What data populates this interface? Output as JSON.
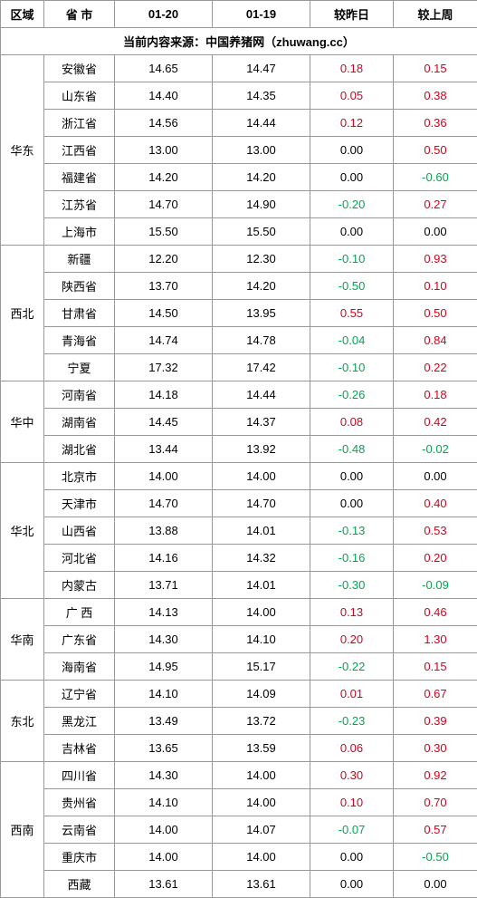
{
  "headers": {
    "region": "区域",
    "province": "省 市",
    "date1": "01-20",
    "date2": "01-19",
    "vs_day": "较昨日",
    "vs_week": "较上周"
  },
  "source_line": "当前内容来源：中国养猪网（zhuwang.cc）",
  "regions": [
    {
      "name": "华东",
      "rows": [
        {
          "prov": "安徽省",
          "d1": "14.65",
          "d2": "14.47",
          "vd": "0.18",
          "vw": "0.15"
        },
        {
          "prov": "山东省",
          "d1": "14.40",
          "d2": "14.35",
          "vd": "0.05",
          "vw": "0.38"
        },
        {
          "prov": "浙江省",
          "d1": "14.56",
          "d2": "14.44",
          "vd": "0.12",
          "vw": "0.36"
        },
        {
          "prov": "江西省",
          "d1": "13.00",
          "d2": "13.00",
          "vd": "0.00",
          "vw": "0.50"
        },
        {
          "prov": "福建省",
          "d1": "14.20",
          "d2": "14.20",
          "vd": "0.00",
          "vw": "-0.60"
        },
        {
          "prov": "江苏省",
          "d1": "14.70",
          "d2": "14.90",
          "vd": "-0.20",
          "vw": "0.27"
        },
        {
          "prov": "上海市",
          "d1": "15.50",
          "d2": "15.50",
          "vd": "0.00",
          "vw": "0.00"
        }
      ]
    },
    {
      "name": "西北",
      "rows": [
        {
          "prov": "新疆",
          "d1": "12.20",
          "d2": "12.30",
          "vd": "-0.10",
          "vw": "0.93"
        },
        {
          "prov": "陕西省",
          "d1": "13.70",
          "d2": "14.20",
          "vd": "-0.50",
          "vw": "0.10"
        },
        {
          "prov": "甘肃省",
          "d1": "14.50",
          "d2": "13.95",
          "vd": "0.55",
          "vw": "0.50"
        },
        {
          "prov": "青海省",
          "d1": "14.74",
          "d2": "14.78",
          "vd": "-0.04",
          "vw": "0.84"
        },
        {
          "prov": "宁夏",
          "d1": "17.32",
          "d2": "17.42",
          "vd": "-0.10",
          "vw": "0.22"
        }
      ]
    },
    {
      "name": "华中",
      "rows": [
        {
          "prov": "河南省",
          "d1": "14.18",
          "d2": "14.44",
          "vd": "-0.26",
          "vw": "0.18"
        },
        {
          "prov": "湖南省",
          "d1": "14.45",
          "d2": "14.37",
          "vd": "0.08",
          "vw": "0.42"
        },
        {
          "prov": "湖北省",
          "d1": "13.44",
          "d2": "13.92",
          "vd": "-0.48",
          "vw": "-0.02"
        }
      ]
    },
    {
      "name": "华北",
      "rows": [
        {
          "prov": "北京市",
          "d1": "14.00",
          "d2": "14.00",
          "vd": "0.00",
          "vw": "0.00"
        },
        {
          "prov": "天津市",
          "d1": "14.70",
          "d2": "14.70",
          "vd": "0.00",
          "vw": "0.40"
        },
        {
          "prov": "山西省",
          "d1": "13.88",
          "d2": "14.01",
          "vd": "-0.13",
          "vw": "0.53"
        },
        {
          "prov": "河北省",
          "d1": "14.16",
          "d2": "14.32",
          "vd": "-0.16",
          "vw": "0.20"
        },
        {
          "prov": "内蒙古",
          "d1": "13.71",
          "d2": "14.01",
          "vd": "-0.30",
          "vw": "-0.09"
        }
      ]
    },
    {
      "name": "华南",
      "rows": [
        {
          "prov": "广 西",
          "d1": "14.13",
          "d2": "14.00",
          "vd": "0.13",
          "vw": "0.46"
        },
        {
          "prov": "广东省",
          "d1": "14.30",
          "d2": "14.10",
          "vd": "0.20",
          "vw": "1.30"
        },
        {
          "prov": "海南省",
          "d1": "14.95",
          "d2": "15.17",
          "vd": "-0.22",
          "vw": "0.15"
        }
      ]
    },
    {
      "name": "东北",
      "rows": [
        {
          "prov": "辽宁省",
          "d1": "14.10",
          "d2": "14.09",
          "vd": "0.01",
          "vw": "0.67"
        },
        {
          "prov": "黑龙江",
          "d1": "13.49",
          "d2": "13.72",
          "vd": "-0.23",
          "vw": "0.39"
        },
        {
          "prov": "吉林省",
          "d1": "13.65",
          "d2": "13.59",
          "vd": "0.06",
          "vw": "0.30"
        }
      ]
    },
    {
      "name": "西南",
      "rows": [
        {
          "prov": "四川省",
          "d1": "14.30",
          "d2": "14.00",
          "vd": "0.30",
          "vw": "0.92"
        },
        {
          "prov": "贵州省",
          "d1": "14.10",
          "d2": "14.00",
          "vd": "0.10",
          "vw": "0.70"
        },
        {
          "prov": "云南省",
          "d1": "14.00",
          "d2": "14.07",
          "vd": "-0.07",
          "vw": "0.57"
        },
        {
          "prov": "重庆市",
          "d1": "14.00",
          "d2": "14.00",
          "vd": "0.00",
          "vw": "-0.50"
        },
        {
          "prov": "西藏",
          "d1": "13.61",
          "d2": "13.61",
          "vd": "0.00",
          "vw": "0.00"
        }
      ]
    }
  ]
}
